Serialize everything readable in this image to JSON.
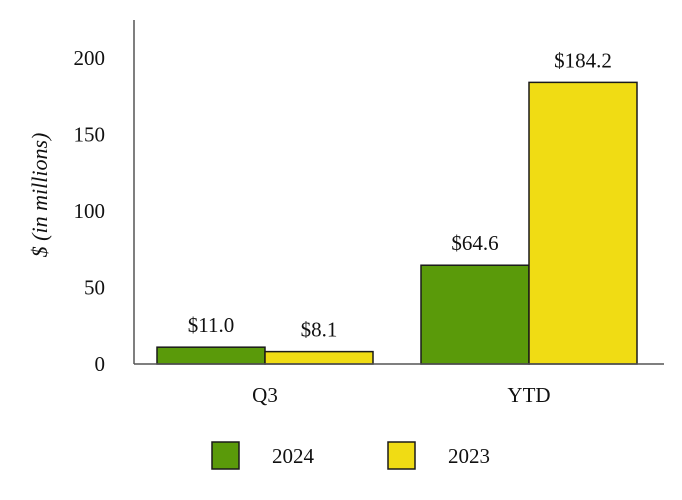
{
  "chart_data": {
    "type": "bar",
    "title": "",
    "xlabel": "",
    "ylabel": "$ (in millions)",
    "ylim": [
      0,
      225
    ],
    "yticks": [
      0,
      50,
      100,
      150,
      200
    ],
    "categories": [
      "Q3",
      "YTD"
    ],
    "series": [
      {
        "name": "2024",
        "color": "#5a9a0a",
        "values": [
          11.0,
          64.6
        ],
        "labels": [
          "$11.0",
          "$64.6"
        ]
      },
      {
        "name": "2023",
        "color": "#f0dc14",
        "values": [
          8.1,
          184.2
        ],
        "labels": [
          "$8.1",
          "$184.2"
        ]
      }
    ],
    "legend": "bottom",
    "grid": false
  }
}
